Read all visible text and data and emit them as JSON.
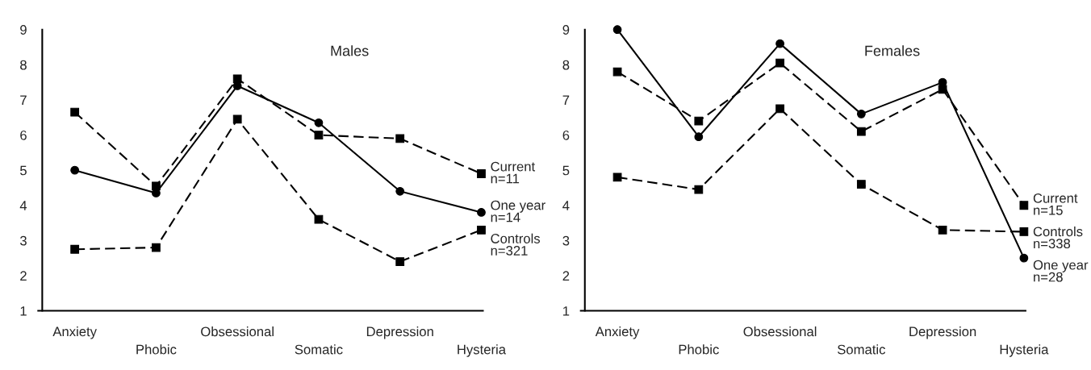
{
  "chart_data": [
    {
      "type": "line",
      "title": "Males",
      "categories": [
        "Anxiety",
        "Phobic",
        "Obsessional",
        "Somatic",
        "Depression",
        "Hysteria"
      ],
      "ylim": [
        1,
        9
      ],
      "yticks": [
        1,
        2,
        3,
        4,
        5,
        6,
        7,
        8,
        9
      ],
      "grid": false,
      "legend": false,
      "series": [
        {
          "name": "Current\nn=11",
          "color": "#000000",
          "marker": "square",
          "line_style": "dashed",
          "values": [
            6.65,
            4.55,
            7.6,
            6.0,
            5.9,
            4.9
          ]
        },
        {
          "name": "One year\nn=14",
          "color": "#000000",
          "marker": "circle",
          "line_style": "solid",
          "values": [
            5.0,
            4.35,
            7.4,
            6.35,
            4.4,
            3.8
          ]
        },
        {
          "name": "Controls\nn=321",
          "color": "#000000",
          "marker": "square",
          "line_style": "dashed",
          "values": [
            2.75,
            2.8,
            6.45,
            3.6,
            2.4,
            3.3
          ]
        }
      ]
    },
    {
      "type": "line",
      "title": "Females",
      "categories": [
        "Anxiety",
        "Phobic",
        "Obsessional",
        "Somatic",
        "Depression",
        "Hysteria"
      ],
      "ylim": [
        1,
        9
      ],
      "yticks": [
        1,
        2,
        3,
        4,
        5,
        6,
        7,
        8,
        9
      ],
      "grid": false,
      "legend": false,
      "series": [
        {
          "name": "Current\nn=15",
          "color": "#000000",
          "marker": "square",
          "line_style": "dashed",
          "values": [
            7.8,
            6.4,
            8.05,
            6.1,
            7.3,
            4.0
          ]
        },
        {
          "name": "Controls\nn=338",
          "color": "#000000",
          "marker": "square",
          "line_style": "dashed",
          "values": [
            4.8,
            4.45,
            6.75,
            4.6,
            3.3,
            3.25
          ]
        },
        {
          "name": "One year\nn=28",
          "color": "#000000",
          "marker": "circle",
          "line_style": "solid",
          "values": [
            9.0,
            5.95,
            8.6,
            6.6,
            7.5,
            2.5
          ]
        }
      ]
    }
  ]
}
